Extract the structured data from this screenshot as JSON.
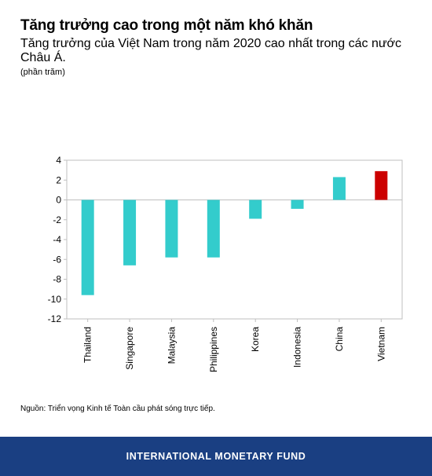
{
  "header": {
    "title": "Tăng trưởng cao trong một năm khó khăn",
    "subtitle": "Tăng trưởng của Việt Nam trong năm 2020 cao nhất trong các nước Châu Á.",
    "unit": "(phần trăm)"
  },
  "source": "Nguồn: Triển vọng Kinh tế Toàn cầu phát sóng trực tiếp.",
  "footer": {
    "text": "INTERNATIONAL MONETARY FUND"
  },
  "colors": {
    "bar": "#33cccc",
    "highlight": "#cc0000",
    "footer": "#1a3f82"
  },
  "chart_data": {
    "type": "bar",
    "categories": [
      "Thailand",
      "Singapore",
      "Malaysia",
      "Philippines",
      "Korea",
      "Indonesia",
      "China",
      "Vietnam"
    ],
    "values": [
      -9.6,
      -6.6,
      -5.8,
      -5.8,
      -1.9,
      -0.9,
      2.3,
      2.9
    ],
    "highlight_category": "Vietnam",
    "ylim": [
      -12,
      4
    ],
    "yticks": [
      4,
      2,
      0,
      -2,
      -4,
      -6,
      -8,
      -10,
      -12
    ],
    "grid": false,
    "legend": "none"
  }
}
